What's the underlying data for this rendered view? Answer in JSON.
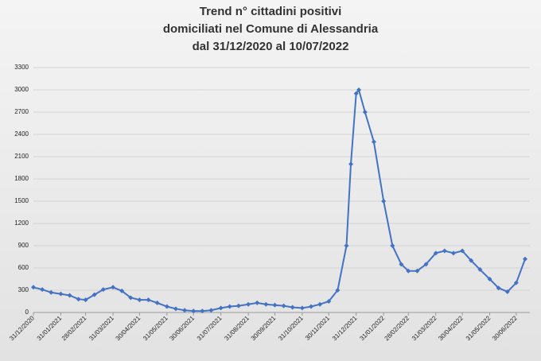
{
  "chart_data": {
    "type": "line",
    "title": [
      "Trend n° cittadini positivi",
      "domiciliati nel Comune di Alessandria",
      "dal 31/12/2020 al 10/07/2022"
    ],
    "series": [
      {
        "name": null,
        "color": "#4472c4",
        "x": [
          "31/12/2020",
          "10/01/2021",
          "20/01/2021",
          "31/01/2021",
          "10/02/2021",
          "20/02/2021",
          "28/02/2021",
          "10/03/2021",
          "20/03/2021",
          "31/03/2021",
          "10/04/2021",
          "20/04/2021",
          "30/04/2021",
          "10/05/2021",
          "20/05/2021",
          "31/05/2021",
          "10/06/2021",
          "20/06/2021",
          "30/06/2021",
          "10/07/2021",
          "20/07/2021",
          "31/07/2021",
          "10/08/2021",
          "20/08/2021",
          "31/08/2021",
          "10/09/2021",
          "20/09/2021",
          "30/09/2021",
          "10/10/2021",
          "20/10/2021",
          "31/10/2021",
          "10/11/2021",
          "20/11/2021",
          "30/11/2021",
          "10/12/2021",
          "20/12/2021",
          "25/12/2021",
          "31/12/2021",
          "03/01/2022",
          "10/01/2022",
          "20/01/2022",
          "31/01/2022",
          "10/02/2022",
          "20/02/2022",
          "28/02/2022",
          "10/03/2022",
          "20/03/2022",
          "31/03/2022",
          "10/04/2022",
          "20/04/2022",
          "30/04/2022",
          "10/05/2022",
          "20/05/2022",
          "31/05/2022",
          "10/06/2022",
          "20/06/2022",
          "30/06/2022",
          "10/07/2022"
        ],
        "values": [
          340,
          310,
          270,
          250,
          230,
          180,
          170,
          240,
          310,
          340,
          290,
          200,
          170,
          170,
          130,
          80,
          50,
          30,
          20,
          20,
          30,
          60,
          80,
          90,
          110,
          130,
          110,
          100,
          90,
          70,
          60,
          80,
          110,
          150,
          300,
          900,
          2000,
          2950,
          3000,
          2700,
          2300,
          1500,
          900,
          650,
          560,
          560,
          650,
          800,
          830,
          800,
          830,
          700,
          580,
          450,
          330,
          280,
          400,
          720
        ]
      }
    ],
    "xlim": [
      "31/12/2020",
      "10/07/2022"
    ],
    "xticks": [
      "31/12/2020",
      "31/01/2021",
      "28/02/2021",
      "31/03/2021",
      "30/04/2021",
      "31/05/2021",
      "30/06/2021",
      "31/07/2021",
      "31/08/2021",
      "30/09/2021",
      "31/10/2021",
      "30/11/2021",
      "31/12/2021",
      "31/01/2022",
      "28/02/2022",
      "31/03/2022",
      "30/04/2022",
      "31/05/2022",
      "30/06/2022"
    ],
    "ylim": [
      0,
      3300
    ],
    "yticks": [
      0,
      300,
      600,
      900,
      1200,
      1500,
      1800,
      2100,
      2400,
      2700,
      3000,
      3300
    ],
    "grid": true
  }
}
